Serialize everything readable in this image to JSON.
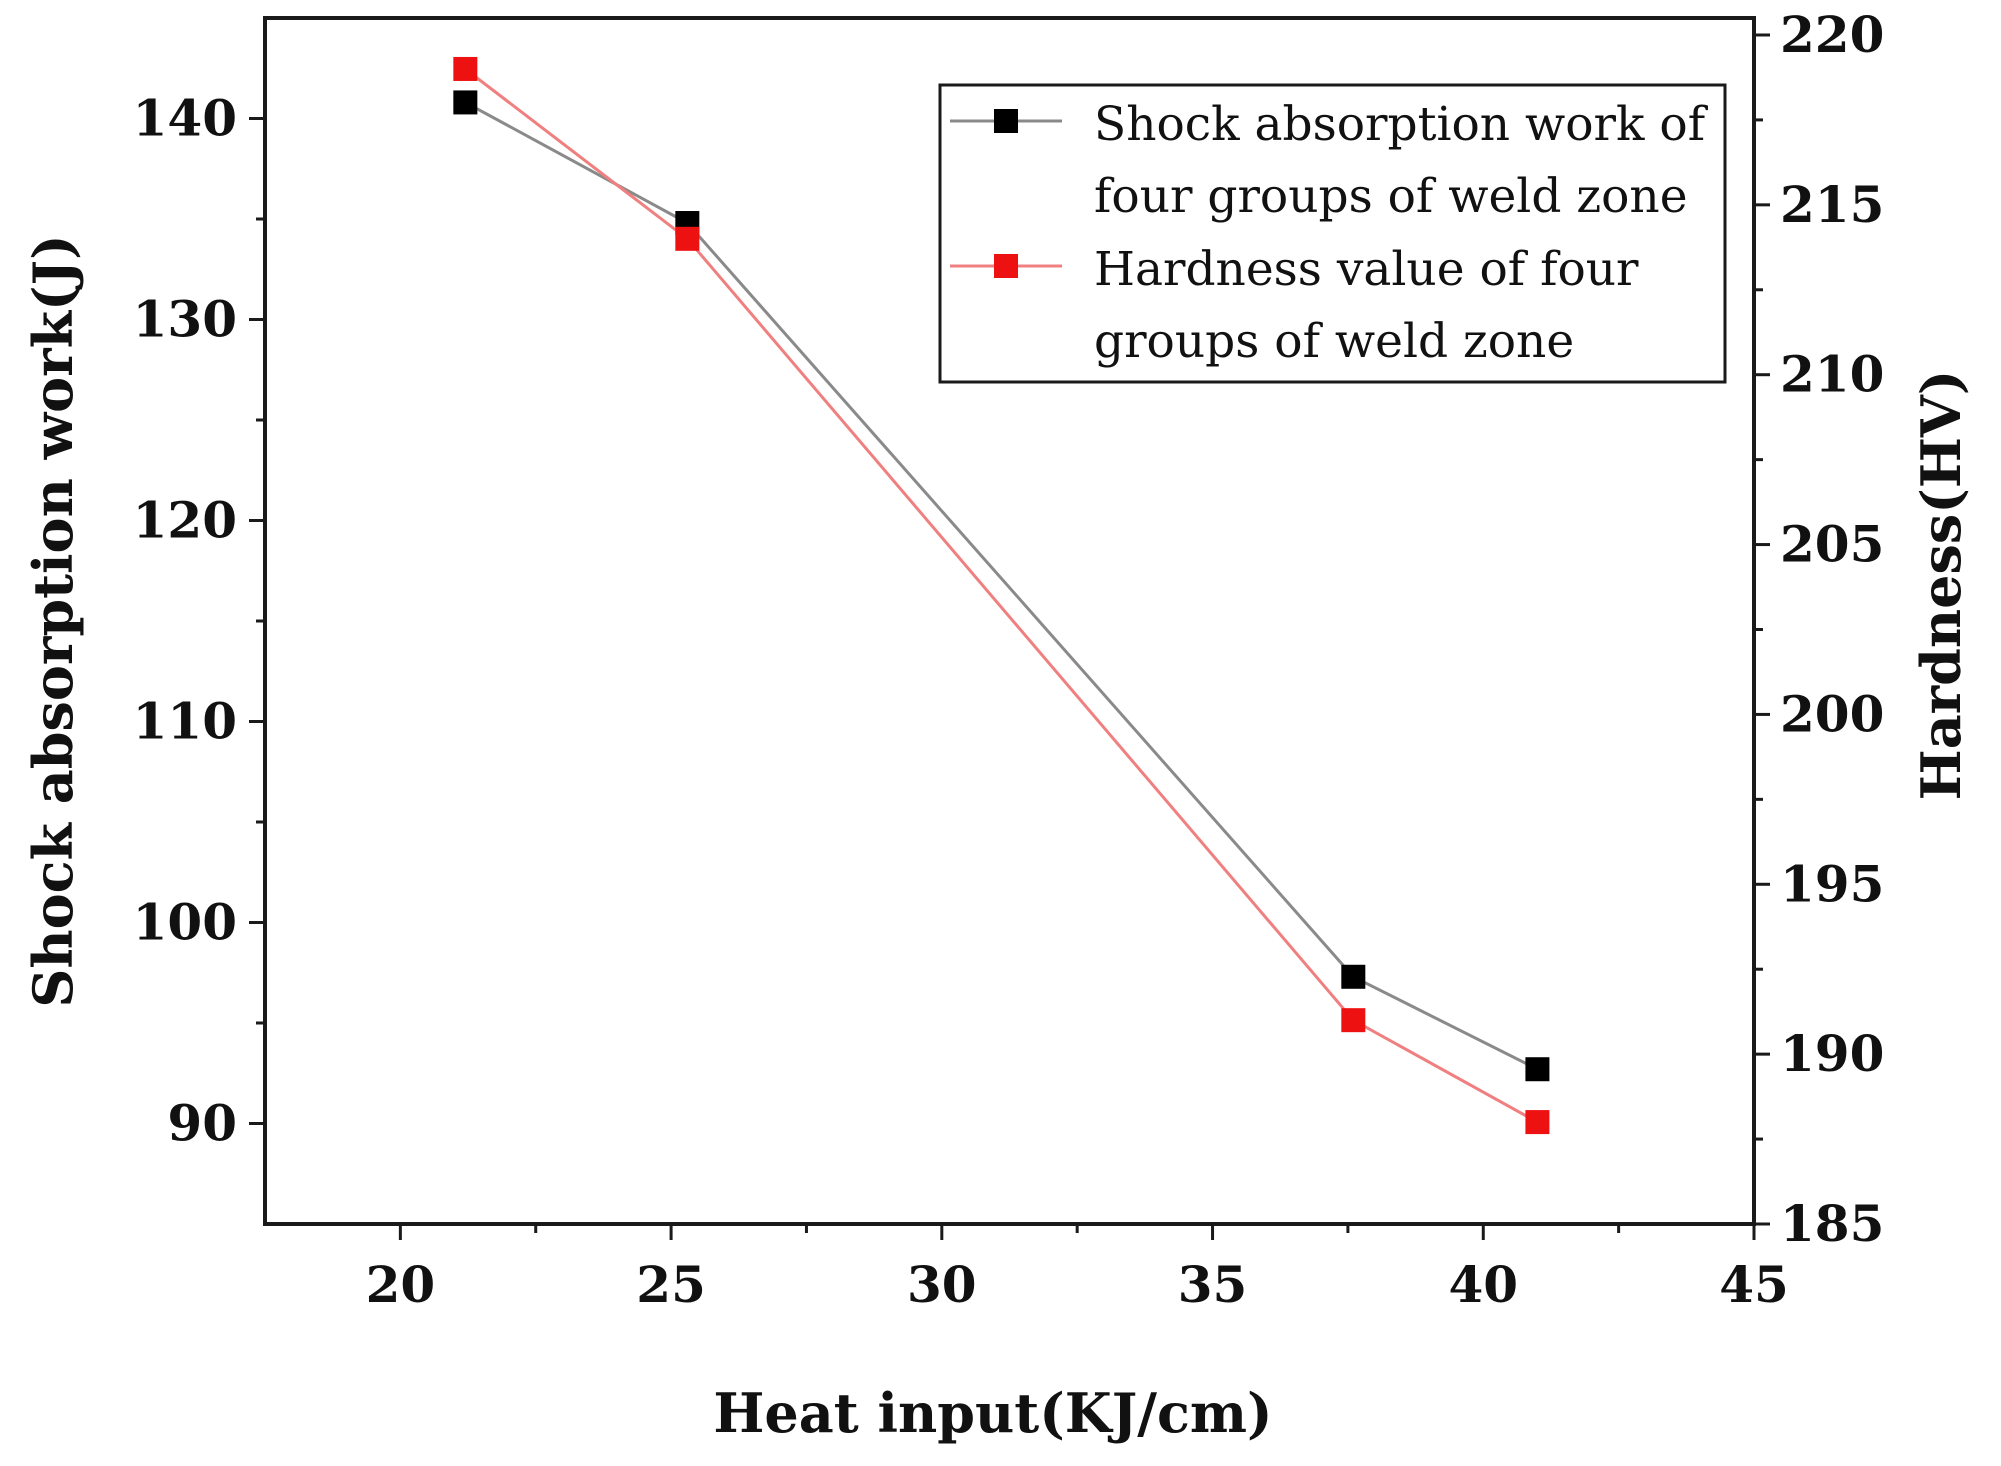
{
  "chart_data": {
    "type": "line",
    "x_axis": {
      "label": "Heat input(KJ/cm)",
      "range": [
        17.5,
        45
      ],
      "ticks": [
        20,
        25,
        30,
        35,
        40,
        45
      ],
      "tick_labels": [
        "20",
        "25",
        "30",
        "35",
        "40",
        "45"
      ]
    },
    "y_axis_left": {
      "label": "Shock absorption work(J)",
      "range": [
        85,
        145
      ],
      "ticks": [
        90,
        100,
        110,
        120,
        130,
        140
      ],
      "tick_labels": [
        "90",
        "100",
        "110",
        "120",
        "130",
        "140"
      ]
    },
    "y_axis_right": {
      "label": "Hardness(HV)",
      "range": [
        185,
        220.5
      ],
      "ticks": [
        185,
        190,
        195,
        200,
        205,
        210,
        215,
        220
      ],
      "tick_labels": [
        "185",
        "190",
        "195",
        "200",
        "205",
        "210",
        "215",
        "220"
      ]
    },
    "series": [
      {
        "name": "Shock absorption work of four groups of weld zone",
        "legend_lines": [
          "Shock absorption work of",
          "four groups of weld zone"
        ],
        "axis": "left",
        "color": "#000000",
        "line_color": "#8a8a8a",
        "marker": "square",
        "x": [
          21.2,
          25.3,
          37.6,
          41.0
        ],
        "y": [
          140.8,
          134.8,
          97.3,
          92.7
        ]
      },
      {
        "name": "Hardness value of four groups of weld zone",
        "legend_lines": [
          "Hardness value  of four",
          "groups of weld zone"
        ],
        "axis": "right",
        "color": "#ee1111",
        "line_color": "#f08080",
        "marker": "square",
        "x": [
          21.2,
          25.3,
          37.6,
          41.0
        ],
        "y": [
          219.0,
          214.0,
          191.0,
          188.0
        ]
      }
    ],
    "legend_position": "top-right",
    "grid": false
  }
}
